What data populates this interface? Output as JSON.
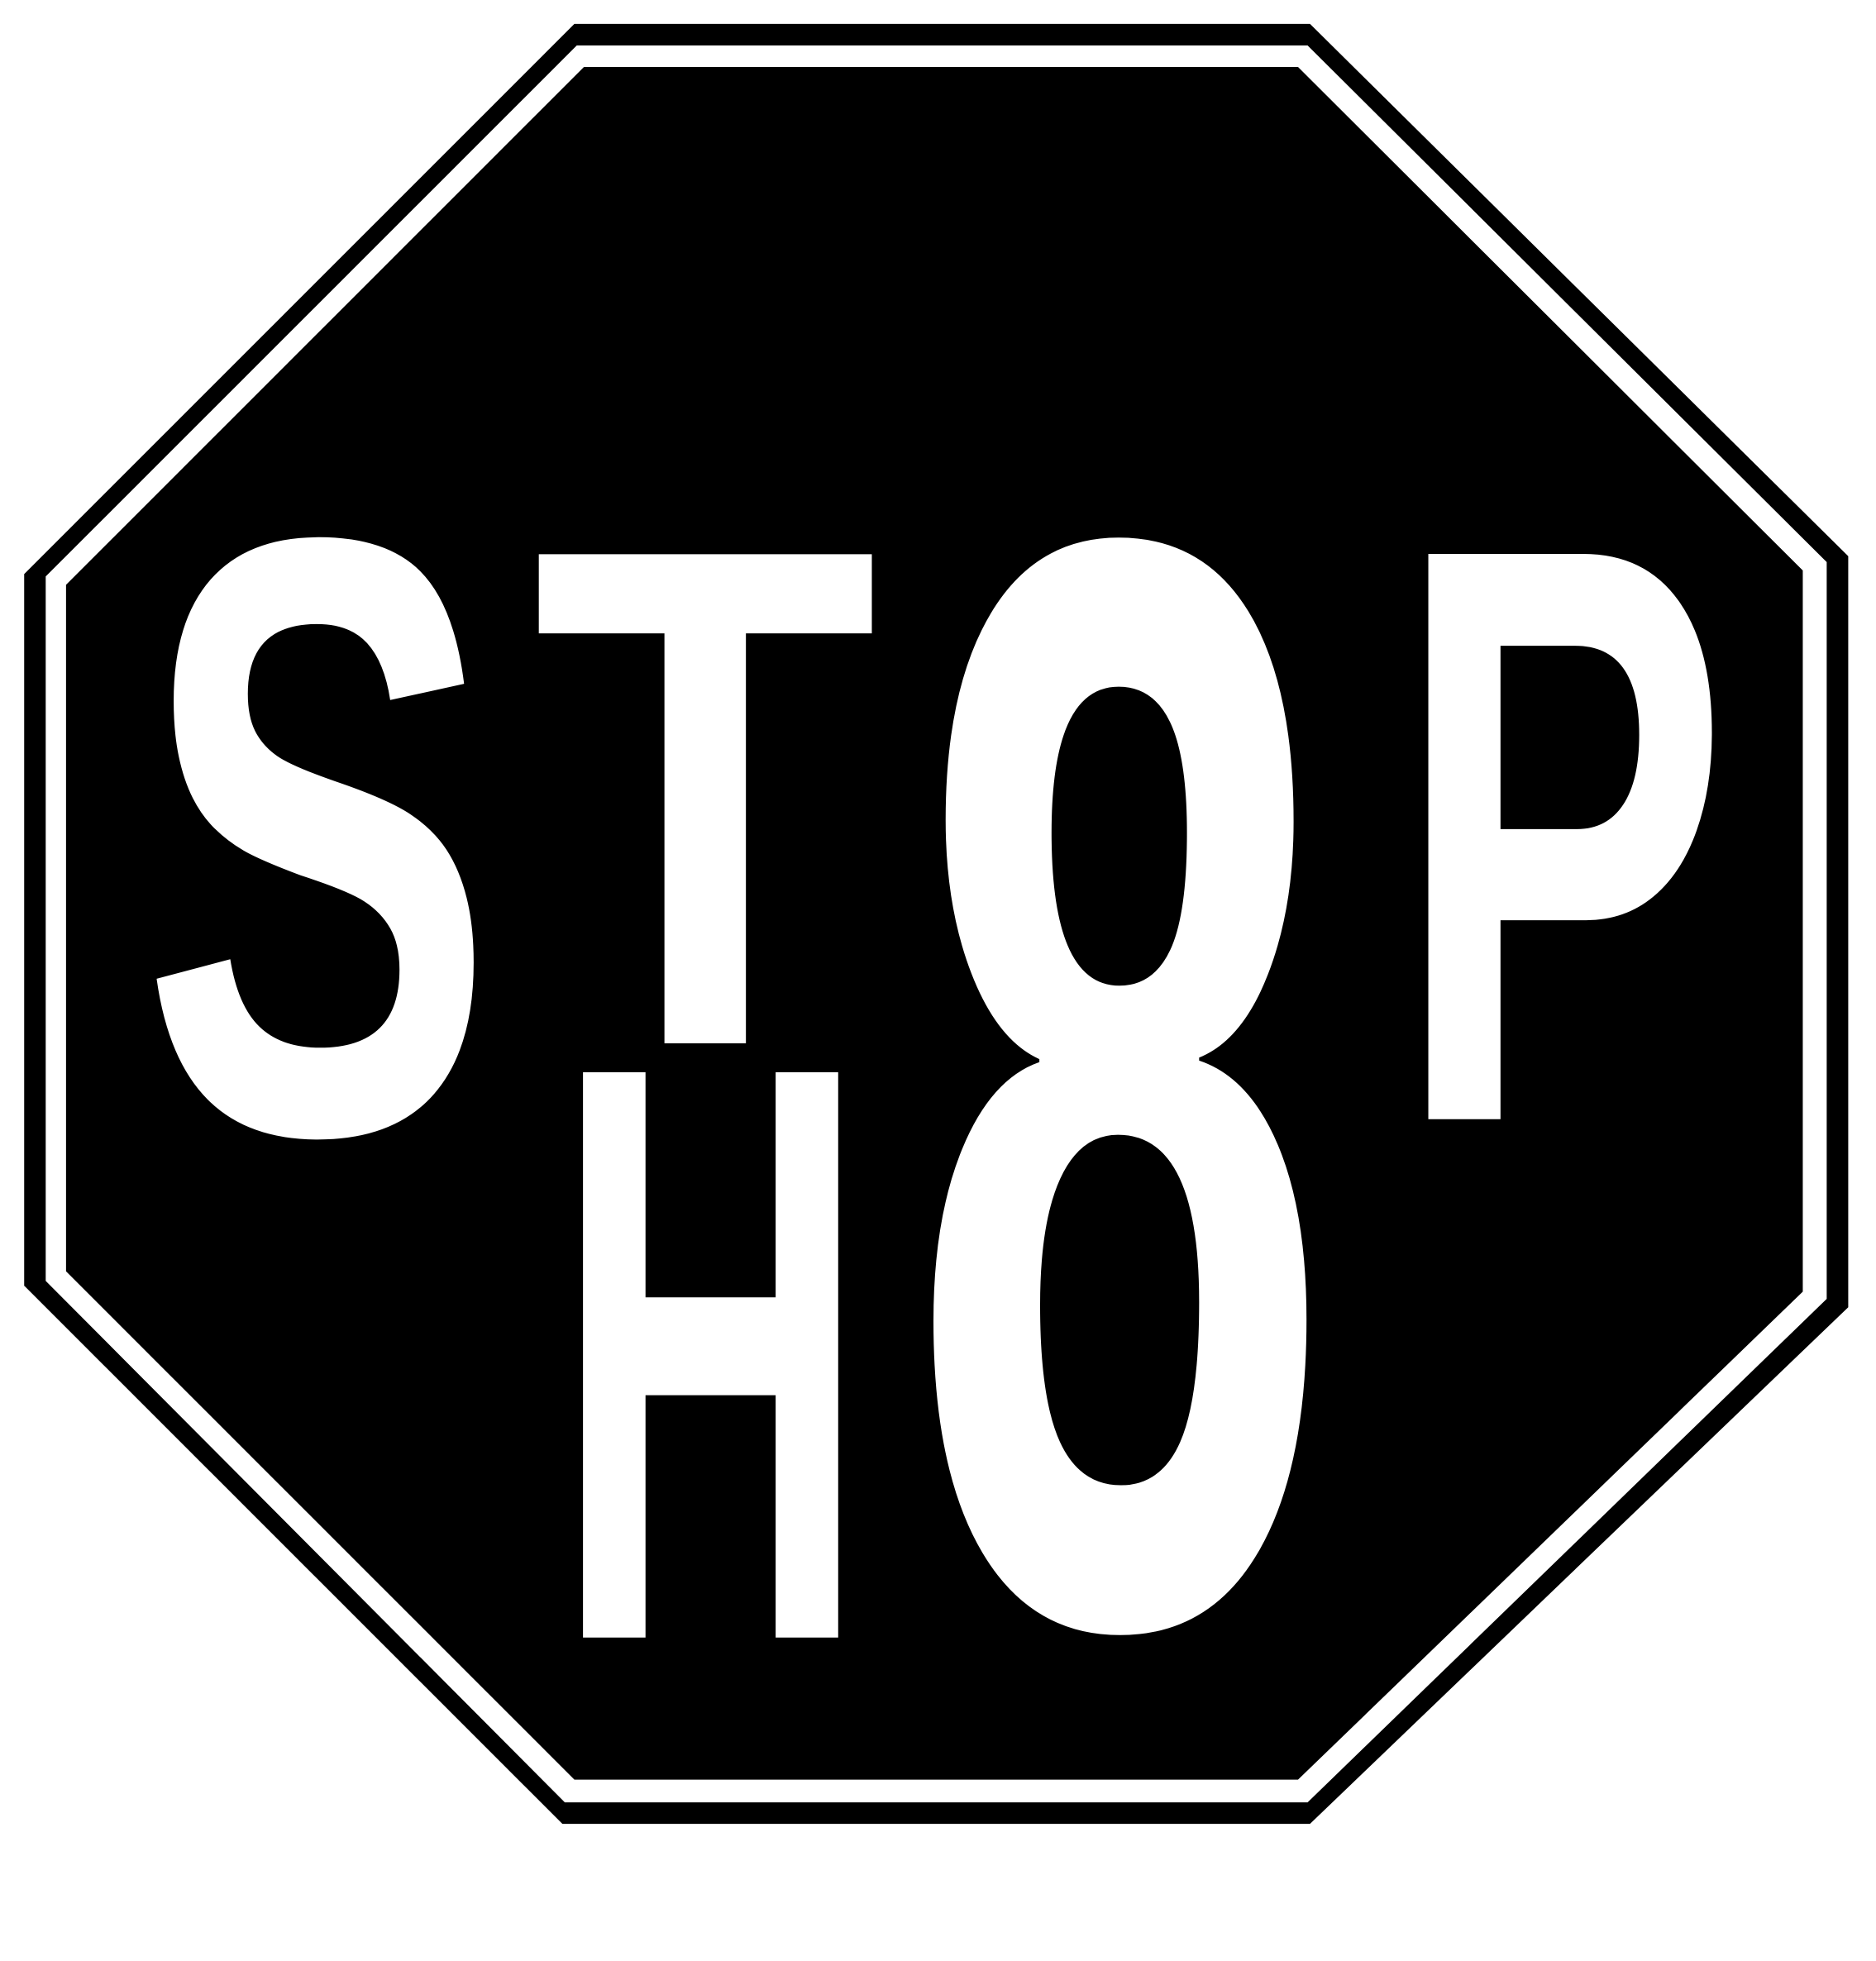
{
  "sign": {
    "text": "STOP H8",
    "glyphs": {
      "s": "S",
      "t": "T",
      "p": "P",
      "h": "H",
      "eight": "8"
    },
    "colors": {
      "background": "#000000",
      "lettering": "#ffffff",
      "border": "#000000"
    }
  }
}
